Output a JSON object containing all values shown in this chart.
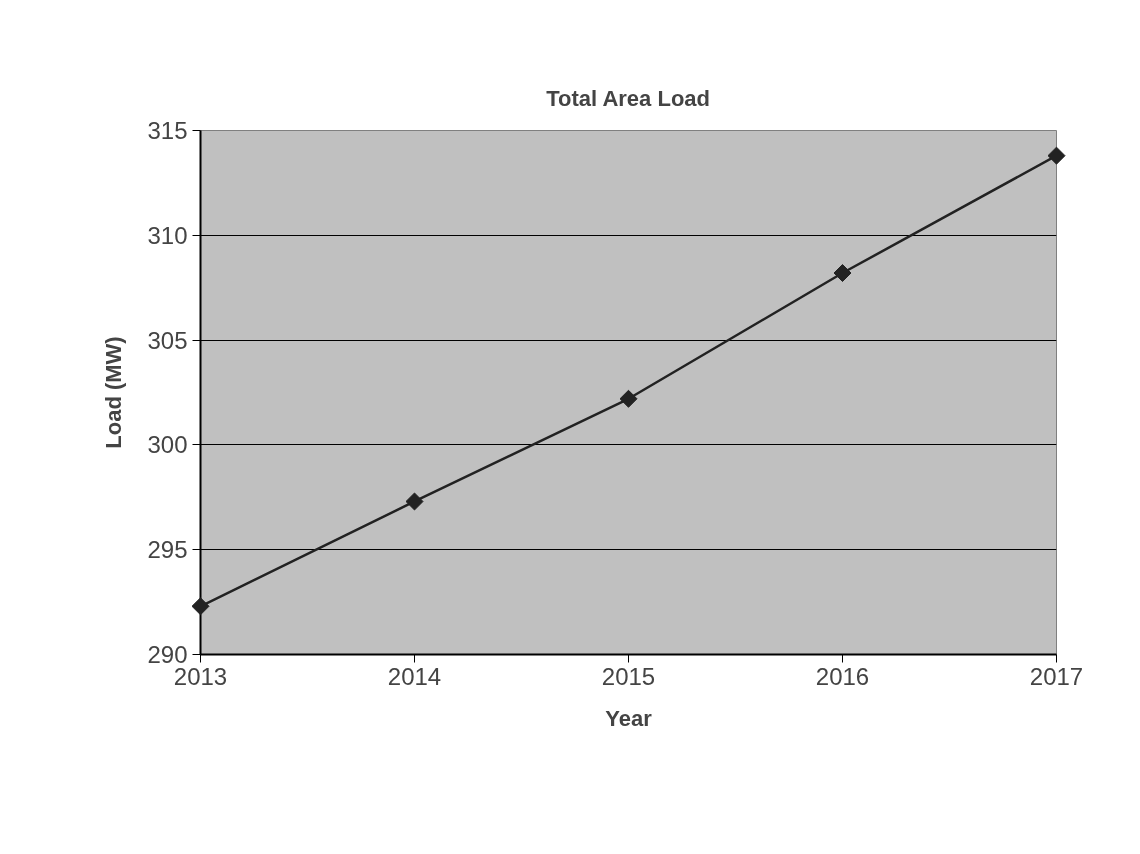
{
  "chart_data": {
    "type": "line",
    "title": "Total Area Load",
    "xlabel": "Year",
    "ylabel": "Load (MW)",
    "x": [
      2013,
      2014,
      2015,
      2016,
      2017
    ],
    "series": [
      {
        "color": "#222222",
        "values": [
          292.3,
          297.3,
          302.2,
          308.2,
          313.8
        ]
      }
    ],
    "xlim": [
      2013,
      2017
    ],
    "xticks": [
      2013,
      2014,
      2015,
      2016,
      2017
    ],
    "ylim": [
      290,
      315
    ],
    "yticks": [
      290,
      295,
      300,
      305,
      310,
      315
    ],
    "grid": "y",
    "marker": "diamond",
    "line_style": "solid"
  }
}
